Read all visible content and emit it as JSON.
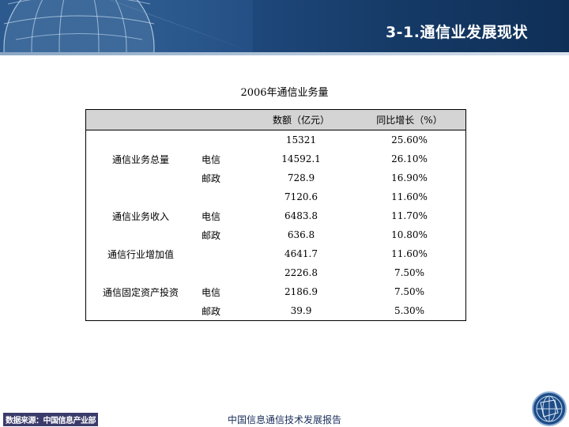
{
  "header": {
    "title": "3-1.通信业发展现状"
  },
  "table_title": "2006年通信业务量",
  "table": {
    "columns": [
      "数额（亿元）",
      "同比增长（%）"
    ],
    "rows": [
      {
        "category": "通信业务总量",
        "sub": "",
        "value": "15321",
        "growth": "25.60%"
      },
      {
        "category": "",
        "sub": "电信",
        "value": "14592.1",
        "growth": "26.10%"
      },
      {
        "category": "",
        "sub": "邮政",
        "value": "728.9",
        "growth": "16.90%"
      },
      {
        "category": "通信业务收入",
        "sub": "",
        "value": "7120.6",
        "growth": "11.60%"
      },
      {
        "category": "",
        "sub": "电信",
        "value": "6483.8",
        "growth": "11.70%"
      },
      {
        "category": "",
        "sub": "邮政",
        "value": "636.8",
        "growth": "10.80%"
      },
      {
        "category": "通信行业增加值",
        "sub": "",
        "value": "4641.7",
        "growth": "11.60%"
      },
      {
        "category": "通信固定资产投资",
        "sub": "",
        "value": "2226.8",
        "growth": "7.50%"
      },
      {
        "category": "",
        "sub": "电信",
        "value": "2186.9",
        "growth": "7.50%"
      },
      {
        "category": "",
        "sub": "邮政",
        "value": "39.9",
        "growth": "5.30%"
      }
    ]
  },
  "footer": {
    "source": "数据来源：中国信息产业部",
    "report": "中国信息通信技术发展报告",
    "logo_icon": "globe-logo-icon"
  },
  "colors": {
    "header_bg": "#1f4e83",
    "table_header_bg": "#d4d4d4"
  }
}
